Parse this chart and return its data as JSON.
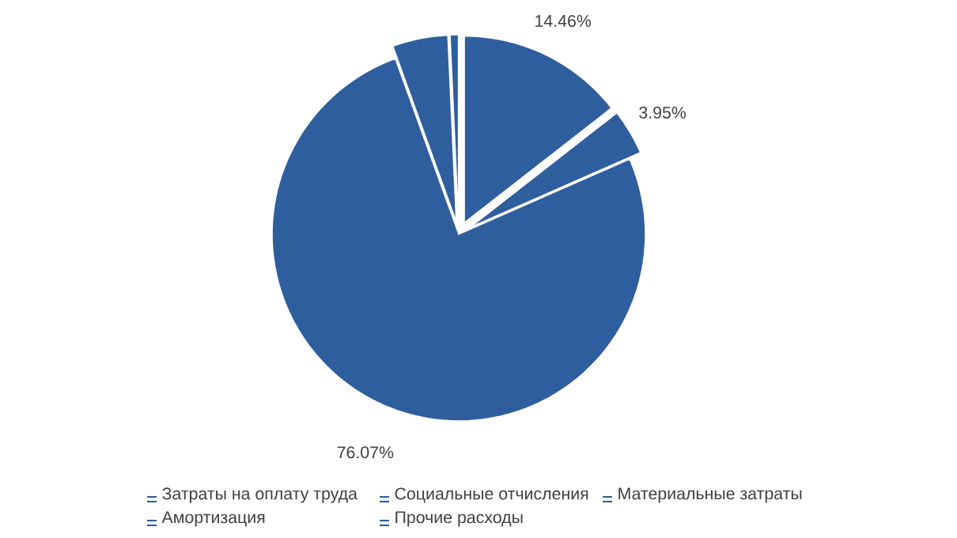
{
  "chart_data": {
    "type": "pie",
    "categories": [
      "Затраты на оплату труда",
      "Социальные отчисления",
      "Материальные затраты",
      "Амортизация",
      "Прочие расходы"
    ],
    "values": [
      14.46,
      3.95,
      76.07,
      4.8,
      0.72
    ],
    "value_labels": [
      "14.46%",
      "3.95%",
      "76.07%",
      null,
      null
    ],
    "colors": [
      "#2e5e9e",
      "#2e5e9e",
      "#2e5e9e",
      "#2e5e9e",
      "#2e5e9e"
    ],
    "legend": "bottom"
  }
}
